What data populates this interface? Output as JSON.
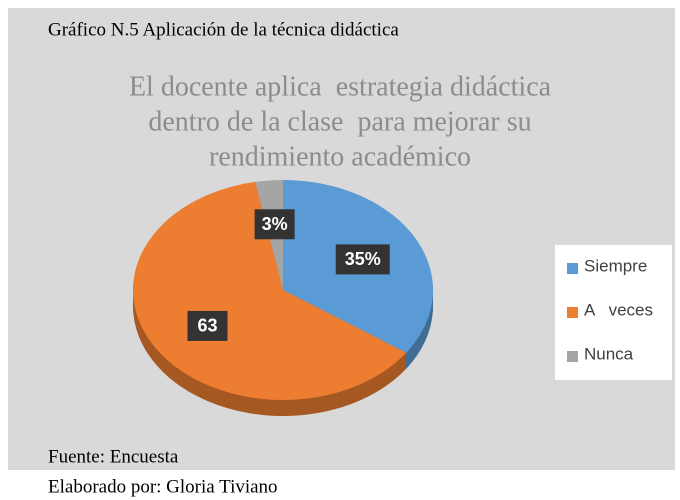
{
  "chart_data": {
    "type": "pie",
    "header": "Gráfico N.5 Aplicación de la técnica didáctica",
    "title": [
      "El docente aplica  estrategia didáctica",
      "dentro de la clase  para mejorar su",
      "rendimiento académico"
    ],
    "categories": [
      "Siempre",
      "A   veces",
      "Nunca"
    ],
    "values": [
      35,
      63,
      3
    ],
    "value_labels": [
      "35%",
      "63",
      "3%"
    ],
    "colors": [
      "#5b9bd5",
      "#ed7d31",
      "#a5a5a5"
    ],
    "legend": "right",
    "source": "Fuente: Encuesta",
    "author": "Elaborado por: Gloria Tiviano"
  }
}
